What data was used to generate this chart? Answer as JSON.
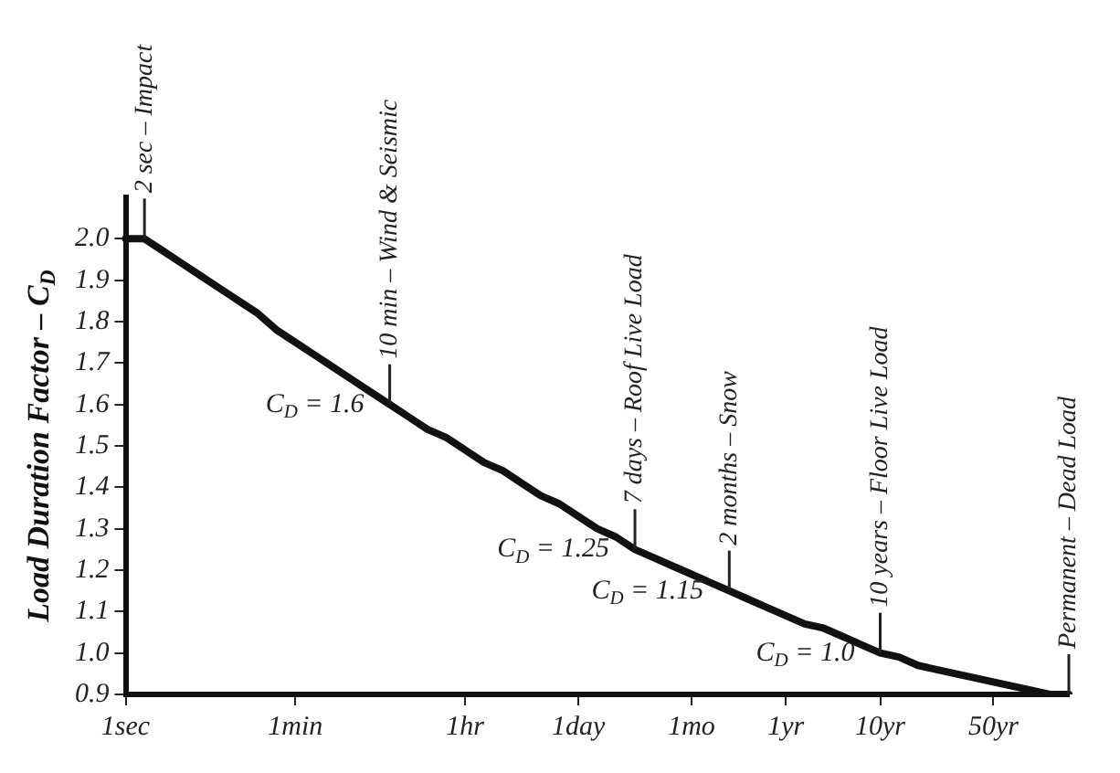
{
  "chart_data": {
    "type": "line",
    "ylabel": "Load Duration Factor – C$_{D}$",
    "categories": [
      "1sec",
      null,
      null,
      null,
      null,
      null,
      null,
      null,
      null,
      "1min",
      null,
      null,
      null,
      null,
      null,
      null,
      null,
      null,
      "1hr",
      null,
      null,
      null,
      null,
      null,
      "1day",
      null,
      null,
      null,
      null,
      null,
      "1mo",
      null,
      null,
      null,
      null,
      "1yr",
      null,
      null,
      null,
      null,
      "10yr",
      null,
      null,
      null,
      null,
      null,
      "50yr",
      null,
      null,
      null,
      null
    ],
    "series": [
      {
        "color": "#111111",
        "values": [
          2.0,
          2.0,
          1.97,
          1.94,
          1.91,
          1.88,
          1.85,
          1.82,
          1.78,
          1.75,
          1.72,
          1.69,
          1.66,
          1.63,
          1.6,
          1.57,
          1.54,
          1.52,
          1.49,
          1.46,
          1.44,
          1.41,
          1.38,
          1.36,
          1.33,
          1.3,
          1.28,
          1.25,
          1.23,
          1.21,
          1.19,
          1.17,
          1.15,
          1.13,
          1.11,
          1.09,
          1.07,
          1.06,
          1.04,
          1.02,
          1.0,
          0.99,
          0.97,
          0.96,
          0.95,
          0.94,
          0.93,
          0.92,
          0.91,
          0.9,
          0.9
        ]
      }
    ],
    "ylim": [
      0.9,
      2.1
    ],
    "yticks": [
      0.9,
      {
        "value": 1.0,
        "label": "1.0"
      },
      1.1,
      1.2,
      1.3,
      1.4,
      1.5,
      1.6,
      1.7,
      1.8,
      1.9,
      {
        "value": 2.0,
        "label": "2.0"
      }
    ],
    "grid": false,
    "legend": false,
    "marker": "none",
    "line_style": "solid",
    "annotations": [
      {
        "text": "2 sec – Impact",
        "y": 2.0
      },
      {
        "text": "10 min – Wind & Seismic",
        "y": 1.6
      },
      {
        "text": "7 days – Roof Live Load",
        "y": 1.25
      },
      {
        "text": "2 months – Snow",
        "y": 1.15
      },
      {
        "text": "10 years – Floor Live Load",
        "y": 1.0
      },
      {
        "text": "Permanent – Dead Load",
        "y": 0.9
      },
      "C$_{D}$ = 1.6",
      "C$_{D}$ = 1.25",
      "C$_{D}$ = 1.15",
      "C$_{D}$ = 1.0"
    ]
  }
}
